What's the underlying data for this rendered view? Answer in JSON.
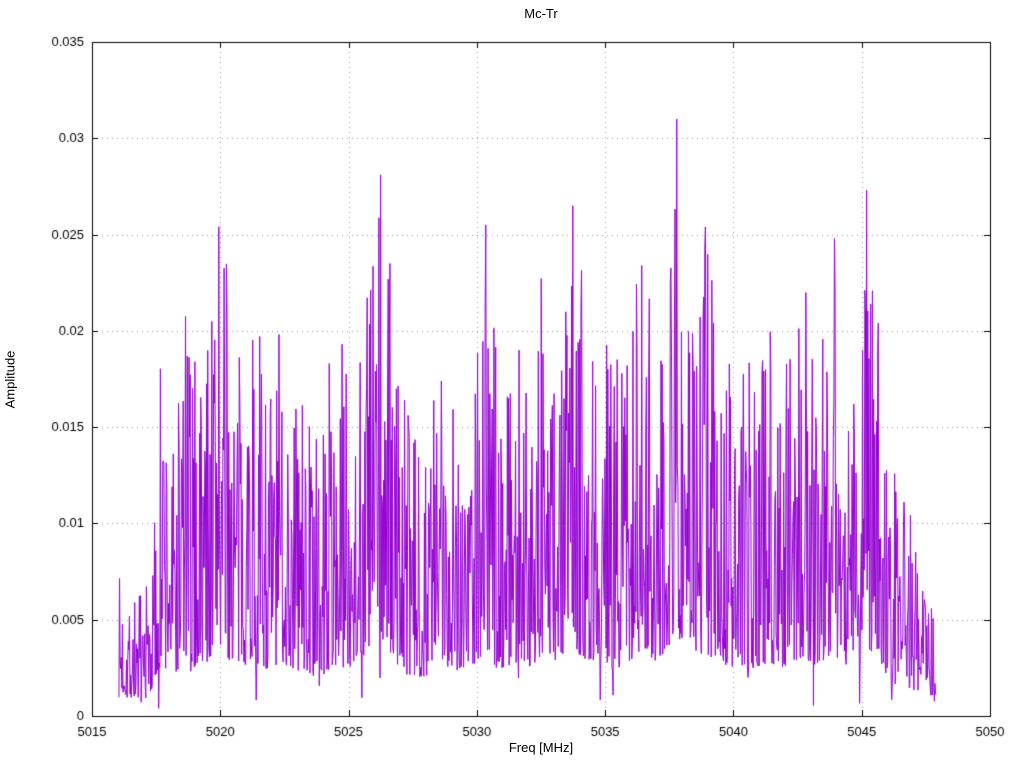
{
  "chart_data": {
    "type": "line",
    "title": "Mc-Tr",
    "xlabel": "Freq [MHz]",
    "ylabel": "Amplitude",
    "xlim": [
      5015,
      5050
    ],
    "ylim": [
      0,
      0.035
    ],
    "x_ticks": [
      5015,
      5020,
      5025,
      5030,
      5035,
      5040,
      5045,
      5050
    ],
    "x_tick_labels": [
      "5015",
      "5020",
      "5025",
      "5030",
      "5035",
      "5040",
      "5045",
      "5050"
    ],
    "y_ticks": [
      0,
      0.005,
      0.01,
      0.015,
      0.02,
      0.025,
      0.03,
      0.035
    ],
    "y_tick_labels": [
      "0",
      "0.005",
      "0.01",
      "0.015",
      "0.02",
      "0.025",
      "0.03",
      "0.035"
    ],
    "grid": true,
    "legend": "none",
    "line_color": "#9400d3",
    "background_color": "#ffffff",
    "border_color": "#000000",
    "grid_color": "#9a9a9a",
    "series_x_start": 5016.05,
    "series_x_end": 5047.9,
    "envelope": [
      [
        5016.0,
        0.0075
      ],
      [
        5016.5,
        0.007
      ],
      [
        5017.0,
        0.0065
      ],
      [
        5017.4,
        0.0095
      ],
      [
        5017.7,
        0.0197
      ],
      [
        5018.2,
        0.015
      ],
      [
        5018.6,
        0.0229
      ],
      [
        5019.0,
        0.019
      ],
      [
        5019.4,
        0.0205
      ],
      [
        5019.8,
        0.0249
      ],
      [
        5020.0,
        0.0254
      ],
      [
        5020.3,
        0.023
      ],
      [
        5020.7,
        0.0185
      ],
      [
        5021.2,
        0.0222
      ],
      [
        5021.6,
        0.0198
      ],
      [
        5022.0,
        0.0179
      ],
      [
        5022.4,
        0.021
      ],
      [
        5022.8,
        0.018
      ],
      [
        5023.3,
        0.0175
      ],
      [
        5023.8,
        0.0145
      ],
      [
        5024.3,
        0.0192
      ],
      [
        5024.8,
        0.0195
      ],
      [
        5025.2,
        0.0197
      ],
      [
        5025.6,
        0.0238
      ],
      [
        5026.2,
        0.0281
      ],
      [
        5026.5,
        0.0249
      ],
      [
        5027.0,
        0.019
      ],
      [
        5027.5,
        0.0145
      ],
      [
        5028.0,
        0.016
      ],
      [
        5028.5,
        0.018
      ],
      [
        5029.0,
        0.0203
      ],
      [
        5029.5,
        0.016
      ],
      [
        5030.3,
        0.0255
      ],
      [
        5030.8,
        0.0185
      ],
      [
        5031.5,
        0.0213
      ],
      [
        5032.0,
        0.019
      ],
      [
        5032.5,
        0.0237
      ],
      [
        5033.0,
        0.021
      ],
      [
        5033.7,
        0.0265
      ],
      [
        5034.3,
        0.022
      ],
      [
        5034.8,
        0.0222
      ],
      [
        5035.3,
        0.018
      ],
      [
        5035.8,
        0.021
      ],
      [
        5036.3,
        0.0247
      ],
      [
        5037.0,
        0.022
      ],
      [
        5037.8,
        0.031
      ],
      [
        5038.3,
        0.0235
      ],
      [
        5038.9,
        0.0254
      ],
      [
        5039.3,
        0.0223
      ],
      [
        5039.8,
        0.019
      ],
      [
        5040.3,
        0.0192
      ],
      [
        5040.8,
        0.018
      ],
      [
        5041.3,
        0.0213
      ],
      [
        5041.8,
        0.019
      ],
      [
        5042.3,
        0.0215
      ],
      [
        5042.7,
        0.0236
      ],
      [
        5043.2,
        0.02
      ],
      [
        5043.9,
        0.0248
      ],
      [
        5044.5,
        0.018
      ],
      [
        5045.2,
        0.0273
      ],
      [
        5045.6,
        0.0238
      ],
      [
        5046.0,
        0.014
      ],
      [
        5046.5,
        0.012
      ],
      [
        5047.0,
        0.0105
      ],
      [
        5047.5,
        0.009
      ],
      [
        5047.9,
        0.005
      ]
    ],
    "peaks": [
      [
        5019.95,
        0.0254
      ],
      [
        5026.25,
        0.0281
      ],
      [
        5030.35,
        0.0255
      ],
      [
        5033.75,
        0.0265
      ],
      [
        5037.8,
        0.031
      ],
      [
        5038.9,
        0.0254
      ],
      [
        5043.95,
        0.0248
      ],
      [
        5045.2,
        0.0273
      ]
    ],
    "synthesis": {
      "seed": 7,
      "n_points": 1400,
      "min_frac": 0.13,
      "exponent": 1.9,
      "dip_prob": 0.012,
      "dip_factor": 0.15,
      "floor": 0.0004
    }
  }
}
